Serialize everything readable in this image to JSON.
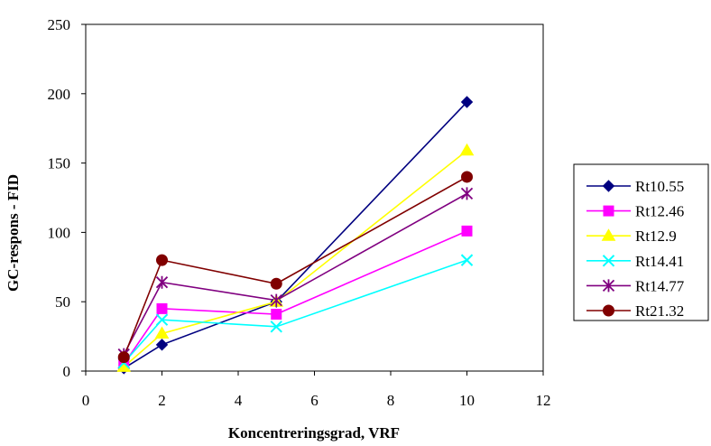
{
  "chart_data": {
    "type": "line",
    "title": "",
    "xlabel": "Koncentreringsgrad, VRF",
    "ylabel": "GC-respons - FID",
    "xlim": [
      0,
      12
    ],
    "ylim": [
      0,
      250
    ],
    "xticks": [
      0,
      2,
      4,
      6,
      8,
      10,
      12
    ],
    "yticks": [
      0,
      50,
      100,
      150,
      200,
      250
    ],
    "grid": false,
    "legend_position": "right",
    "x": [
      1,
      2,
      5,
      10
    ],
    "series": [
      {
        "name": "Rt10.55",
        "color": "#000080",
        "marker": "diamond",
        "values": [
          2,
          19,
          50,
          194
        ]
      },
      {
        "name": "Rt12.46",
        "color": "#FF00FF",
        "marker": "square",
        "values": [
          5,
          45,
          41,
          101
        ]
      },
      {
        "name": "Rt12.9",
        "color": "#FFFF00",
        "marker": "triangle",
        "values": [
          3,
          27,
          50,
          159
        ]
      },
      {
        "name": "Rt14.41",
        "color": "#00FFFF",
        "marker": "x",
        "values": [
          6,
          37,
          32,
          80
        ]
      },
      {
        "name": "Rt14.77",
        "color": "#800080",
        "marker": "star",
        "values": [
          12,
          64,
          51,
          128
        ]
      },
      {
        "name": "Rt21.32",
        "color": "#800000",
        "marker": "circle",
        "values": [
          10,
          80,
          63,
          140
        ]
      }
    ]
  }
}
